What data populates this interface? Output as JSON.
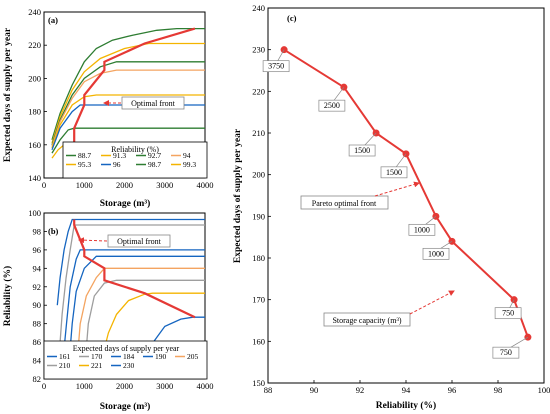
{
  "chart_data": [
    {
      "id": "a",
      "panel_label": "(a)",
      "type": "line",
      "ylabel": "Expected days of supply per year",
      "xlabel": "Storage (m³)",
      "xlim": [
        0,
        4000
      ],
      "ylim": [
        140,
        240
      ],
      "xticks": [
        0,
        1000,
        2000,
        3000,
        4000
      ],
      "yticks": [
        140,
        160,
        180,
        200,
        220,
        240
      ],
      "grid": false,
      "legend_title": "Reliability (%)",
      "legend_position": "bottom",
      "series": [
        {
          "name": "88.7",
          "color": "#2e7d32",
          "points": [
            [
              200,
              163
            ],
            [
              400,
              179
            ],
            [
              700,
              196
            ],
            [
              1000,
              210
            ],
            [
              1300,
              218
            ],
            [
              1700,
              223
            ],
            [
              2200,
              226
            ],
            [
              2800,
              229
            ],
            [
              3300,
              230
            ],
            [
              4000,
              230
            ]
          ]
        },
        {
          "name": "91.3",
          "color": "#f4b400",
          "points": [
            [
              200,
              161
            ],
            [
              400,
              177
            ],
            [
              700,
              193
            ],
            [
              1000,
              204
            ],
            [
              1400,
              212
            ],
            [
              2000,
              218
            ],
            [
              2600,
              221
            ],
            [
              3200,
              221
            ],
            [
              4000,
              221
            ]
          ]
        },
        {
          "name": "92.7",
          "color": "#2e7d32",
          "points": [
            [
              200,
              160
            ],
            [
              400,
              175
            ],
            [
              700,
              190
            ],
            [
              1000,
              200
            ],
            [
              1400,
              207
            ],
            [
              1800,
              210
            ],
            [
              4000,
              210
            ]
          ]
        },
        {
          "name": "94",
          "color": "#f4a460",
          "points": [
            [
              200,
              159
            ],
            [
              400,
              174
            ],
            [
              700,
              188
            ],
            [
              1000,
              198
            ],
            [
              1400,
              203
            ],
            [
              1800,
              205
            ],
            [
              4000,
              205
            ]
          ]
        },
        {
          "name": "95.3",
          "color": "#f4b400",
          "points": [
            [
              200,
              158
            ],
            [
              400,
              172
            ],
            [
              700,
              184
            ],
            [
              1000,
              189
            ],
            [
              1300,
              190
            ],
            [
              4000,
              190
            ]
          ]
        },
        {
          "name": "96",
          "color": "#1565c0",
          "points": [
            [
              200,
              157
            ],
            [
              400,
              170
            ],
            [
              700,
              180
            ],
            [
              900,
              184
            ],
            [
              4000,
              184
            ]
          ]
        },
        {
          "name": "98.7",
          "color": "#2e7d32",
          "points": [
            [
              200,
              155
            ],
            [
              400,
              163
            ],
            [
              600,
              169
            ],
            [
              750,
              170
            ],
            [
              4000,
              170
            ]
          ]
        },
        {
          "name": "99.3",
          "color": "#f4b400",
          "points": [
            [
              200,
              152
            ],
            [
              350,
              157
            ],
            [
              500,
              160
            ],
            [
              650,
              161
            ],
            [
              4000,
              161
            ]
          ]
        }
      ],
      "front": {
        "color": "#e53935",
        "points": [
          [
            3750,
            230
          ],
          [
            2500,
            221
          ],
          [
            1500,
            210
          ],
          [
            1500,
            205
          ],
          [
            1000,
            190
          ],
          [
            1000,
            184
          ],
          [
            750,
            170
          ],
          [
            750,
            161
          ]
        ]
      },
      "annotations": [
        {
          "text": "Optimal front"
        }
      ]
    },
    {
      "id": "b",
      "panel_label": "(b)",
      "type": "line",
      "ylabel": "Reliability (%)",
      "xlabel": "Storage (m³)",
      "xlim": [
        0,
        4000
      ],
      "ylim": [
        82,
        100
      ],
      "xticks": [
        0,
        1000,
        2000,
        3000,
        4000
      ],
      "yticks": [
        82,
        84,
        86,
        88,
        90,
        92,
        94,
        96,
        98,
        100
      ],
      "grid": false,
      "legend_title": "Expected days of supply per year",
      "legend_position": "bottom",
      "series": [
        {
          "name": "161",
          "color": "#1565c0",
          "points": [
            [
              330,
              90
            ],
            [
              400,
              93
            ],
            [
              500,
              96
            ],
            [
              600,
              98
            ],
            [
              700,
              99.3
            ],
            [
              4000,
              99.3
            ]
          ]
        },
        {
          "name": "170",
          "color": "#9e9e9e",
          "points": [
            [
              400,
              86
            ],
            [
              450,
              89
            ],
            [
              550,
              93
            ],
            [
              650,
              96
            ],
            [
              750,
              98.7
            ],
            [
              4000,
              98.7
            ]
          ]
        },
        {
          "name": "184",
          "color": "#1565c0",
          "points": [
            [
              500,
              85.3
            ],
            [
              560,
              88
            ],
            [
              650,
              92
            ],
            [
              800,
              95
            ],
            [
              900,
              96
            ],
            [
              4000,
              96
            ]
          ]
        },
        {
          "name": "190",
          "color": "#1565c0",
          "points": [
            [
              650,
              85.3
            ],
            [
              700,
              88
            ],
            [
              800,
              91.5
            ],
            [
              1000,
              94
            ],
            [
              1300,
              95.3
            ],
            [
              4000,
              95.3
            ]
          ]
        },
        {
          "name": "205",
          "color": "#f4a460",
          "points": [
            [
              850,
              85.3
            ],
            [
              900,
              88
            ],
            [
              1050,
              91
            ],
            [
              1300,
              93
            ],
            [
              1500,
              94
            ],
            [
              4000,
              94
            ]
          ]
        },
        {
          "name": "210",
          "color": "#9e9e9e",
          "points": [
            [
              1050,
              85.3
            ],
            [
              1100,
              88
            ],
            [
              1250,
              91
            ],
            [
              1500,
              92.4
            ],
            [
              1800,
              92.7
            ],
            [
              4000,
              92.7
            ]
          ]
        },
        {
          "name": "221",
          "color": "#f4b400",
          "points": [
            [
              1500,
              85.3
            ],
            [
              1600,
              87
            ],
            [
              1800,
              89
            ],
            [
              2100,
              90.5
            ],
            [
              2500,
              91.2
            ],
            [
              2700,
              91.3
            ],
            [
              4000,
              91.3
            ]
          ]
        },
        {
          "name": "230",
          "color": "#1565c0",
          "points": [
            [
              2600,
              85.3
            ],
            [
              2800,
              86.5
            ],
            [
              3000,
              87.7
            ],
            [
              3400,
              88.5
            ],
            [
              3700,
              88.7
            ],
            [
              4000,
              88.7
            ]
          ]
        }
      ],
      "front": {
        "color": "#e53935",
        "points": [
          [
            750,
            99.3
          ],
          [
            750,
            98.7
          ],
          [
            1000,
            96
          ],
          [
            1000,
            95.3
          ],
          [
            1500,
            94
          ],
          [
            1500,
            92.7
          ],
          [
            2500,
            91.3
          ],
          [
            3750,
            88.7
          ]
        ]
      },
      "annotations": [
        {
          "text": "Optimal front"
        }
      ]
    },
    {
      "id": "c",
      "panel_label": "(c)",
      "type": "line",
      "ylabel": "Expected days of supply per year",
      "xlabel": "Reliability (%)",
      "xlim": [
        88,
        100
      ],
      "ylim": [
        150,
        240
      ],
      "xticks": [
        88,
        90,
        92,
        94,
        96,
        98,
        100
      ],
      "yticks": [
        150,
        160,
        170,
        180,
        190,
        200,
        210,
        220,
        230,
        240
      ],
      "grid": false,
      "series": [
        {
          "name": "",
          "color": "#e53935",
          "points": [
            [
              88.7,
              230
            ],
            [
              91.3,
              221
            ],
            [
              92.7,
              210
            ],
            [
              94,
              205
            ],
            [
              95.3,
              190
            ],
            [
              96,
              184
            ],
            [
              98.7,
              170
            ],
            [
              99.3,
              161
            ]
          ]
        }
      ],
      "point_labels": [
        "3750",
        "2500",
        "1500",
        "1500",
        "1000",
        "1000",
        "750",
        "750"
      ],
      "annotations": [
        {
          "text": "Pareto optimal front"
        },
        {
          "text": "Storage capacity (m³)"
        }
      ]
    }
  ]
}
